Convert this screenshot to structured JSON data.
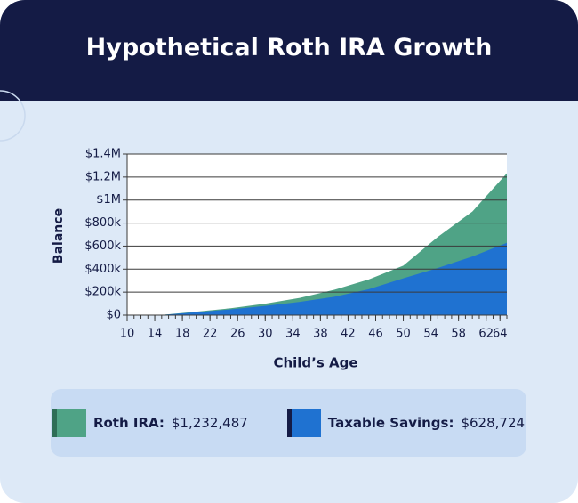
{
  "chart_data": {
    "type": "area",
    "title": "Hypothetical Roth IRA Growth",
    "xlabel": "Child’s Age",
    "ylabel": "Balance",
    "x": [
      10,
      15,
      20,
      25,
      30,
      35,
      40,
      45,
      50,
      55,
      60,
      65
    ],
    "series": [
      {
        "name": "Roth IRA:",
        "color": "#4fa386",
        "strip_color": "#2e6e57",
        "total": 1232487,
        "total_label": "$1,232,487",
        "values": [
          0,
          2000,
          30000,
          60000,
          100000,
          150000,
          220000,
          310000,
          430000,
          680000,
          900000,
          1232487
        ]
      },
      {
        "name": "Taxable Savings:",
        "color": "#1f72d1",
        "strip_color": "#141b45",
        "total": 628724,
        "total_label": "$628,724",
        "values": [
          0,
          1500,
          25000,
          50000,
          80000,
          115000,
          160000,
          225000,
          320000,
          410000,
          510000,
          628724
        ]
      }
    ],
    "xlim": [
      10,
      65
    ],
    "xticks": [
      10,
      14,
      18,
      22,
      26,
      30,
      34,
      38,
      42,
      46,
      50,
      54,
      58,
      62,
      64
    ],
    "xminor_step": 1,
    "ylim": [
      0,
      1400000
    ],
    "yticks": [
      {
        "value": 0,
        "label": "$0"
      },
      {
        "value": 200000,
        "label": "$200k"
      },
      {
        "value": 400000,
        "label": "$400k"
      },
      {
        "value": 600000,
        "label": "$600k"
      },
      {
        "value": 800000,
        "label": "$800k"
      },
      {
        "value": 1000000,
        "label": "$1M"
      },
      {
        "value": 1200000,
        "label": "$1.2M"
      },
      {
        "value": 1400000,
        "label": "$1.4M"
      }
    ],
    "grid": true
  }
}
